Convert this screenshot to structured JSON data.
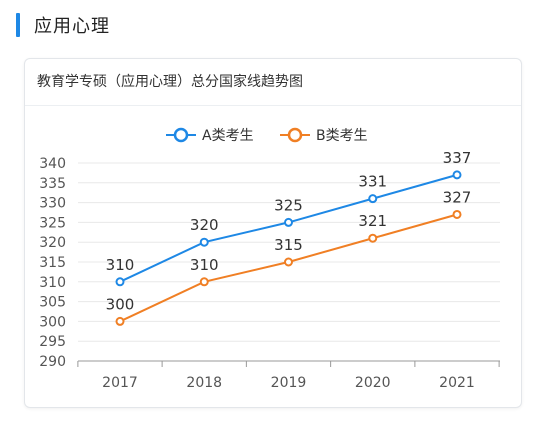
{
  "section": {
    "title": "应用心理"
  },
  "card": {
    "title": "教育学专硕（应用心理）总分国家线趋势图"
  },
  "colors": {
    "accent": "#1e88e5",
    "series_a": "#1e88e5",
    "series_b": "#f07f24",
    "grid": "#e8e8e8",
    "text": "#555555"
  },
  "chart_data": {
    "type": "line",
    "x": [
      "2017",
      "2018",
      "2019",
      "2020",
      "2021"
    ],
    "ylim": [
      290,
      340
    ],
    "yticks": [
      290,
      295,
      300,
      305,
      310,
      315,
      320,
      325,
      330,
      335,
      340
    ],
    "grid": true,
    "legend": "top-center",
    "series": [
      {
        "name": "A类考生",
        "values": [
          310,
          320,
          325,
          331,
          337
        ],
        "color": "#1e88e5"
      },
      {
        "name": "B类考生",
        "values": [
          300,
          310,
          315,
          321,
          327
        ],
        "color": "#f07f24"
      }
    ]
  }
}
